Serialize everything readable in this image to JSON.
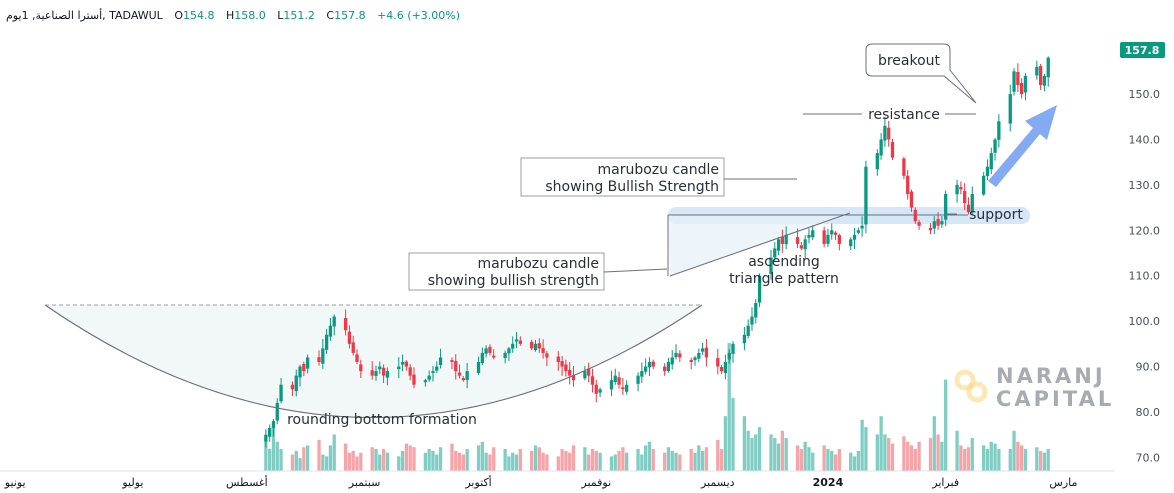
{
  "header": {
    "symbol": "أسترا الصناعية, 1يوم, TADAWUL",
    "open_label": "O",
    "open": "154.8",
    "high_label": "H",
    "high": "158.0",
    "low_label": "L",
    "low": "151.2",
    "close_label": "C",
    "close": "157.8",
    "change": "+4.6 (+3.00%)"
  },
  "price_badge": "157.8",
  "watermark": {
    "line1": "NARANJ",
    "line2": "CAPITAL"
  },
  "colors": {
    "up": "#089981",
    "down": "#f23645",
    "vol_up": "#7fcdc3",
    "vol_down": "#f7a3a8",
    "badge": "#089981",
    "arrow": "#5b8def",
    "highlight": "#cfe3f7"
  },
  "annotations": {
    "rounding_bottom": "rounding bottom formation",
    "marubozu1_l1": "marubozu candle",
    "marubozu1_l2": "showing bullish strength",
    "marubozu2_l1": "marubozu candle",
    "marubozu2_l2": "showing Bullish Strength",
    "ascending_l1": "ascending",
    "ascending_l2": "triangle pattern",
    "resistance": "resistance",
    "support": "support",
    "breakout": "breakout"
  },
  "chart_data": {
    "type": "candlestick",
    "ylim": [
      67,
      163
    ],
    "y_ticks": [
      "70.0",
      "80.0",
      "90.0",
      "100.0",
      "110.0",
      "120.0",
      "130.0",
      "140.0",
      "150.0",
      "160.0"
    ],
    "y_tick_values": [
      70,
      80,
      90,
      100,
      110,
      120,
      130,
      140,
      150,
      160
    ],
    "x_labels": [
      "يونيو",
      "يوليو",
      "أغسطس",
      "سبتمبر",
      "أكتوبر",
      "نوفمبر",
      "ديسمبر",
      "2024",
      "فبراير",
      "مارس"
    ],
    "x_label_dates": [
      "2023-06-01",
      "2023-07-02",
      "2023-08-01",
      "2023-09-01",
      "2023-10-01",
      "2023-11-01",
      "2023-12-03",
      "2024-01-01",
      "2024-02-01",
      "2024-03-03"
    ],
    "date_range": [
      "2023-05-28",
      "2024-03-10"
    ],
    "last_bar_date": "2024-02-28",
    "levels": {
      "rounding_bottom_top": 101,
      "support": 121,
      "resistance": 144
    },
    "closes": [
      75,
      76.5,
      78,
      82,
      86,
      85,
      88,
      90,
      89,
      92,
      91,
      94,
      97,
      99,
      101,
      98,
      95,
      93,
      91,
      89,
      88,
      89,
      90,
      88,
      89,
      90,
      91,
      90,
      88,
      86,
      87,
      88,
      89,
      90,
      92,
      91,
      89,
      88,
      87,
      89,
      91,
      93,
      94,
      93,
      92,
      93,
      94,
      95,
      96,
      95,
      94,
      95,
      94,
      93,
      92,
      91,
      90,
      89,
      88,
      87,
      89,
      88,
      86,
      84,
      85,
      87,
      88,
      86,
      85,
      86,
      88,
      89,
      90,
      91,
      90,
      89,
      91,
      92,
      93,
      92,
      91,
      92,
      93,
      94,
      92,
      90,
      89,
      91,
      93,
      95,
      97,
      99,
      101,
      104,
      110,
      114,
      116,
      118,
      117,
      119,
      117,
      116,
      118,
      119,
      120,
      117,
      119,
      120,
      119,
      117,
      118,
      119,
      120,
      121,
      134,
      137,
      140,
      143,
      140,
      136,
      132,
      128,
      125,
      122,
      121,
      120,
      122,
      121,
      122,
      128,
      130,
      129,
      126,
      124,
      128,
      132,
      134,
      137,
      140,
      144,
      150,
      155,
      152,
      150,
      154,
      156,
      152,
      154,
      158
    ],
    "volumes": [
      18,
      12,
      25,
      16,
      12,
      9,
      11,
      7,
      13,
      14,
      17,
      9,
      8,
      14,
      20,
      15,
      10,
      11,
      8,
      10,
      13,
      12,
      9,
      12,
      10,
      8,
      11,
      15,
      14,
      13,
      10,
      12,
      11,
      9,
      13,
      15,
      11,
      10,
      9,
      12,
      14,
      16,
      10,
      9,
      13,
      12,
      8,
      10,
      9,
      12,
      11,
      14,
      13,
      10,
      9,
      8,
      12,
      11,
      10,
      14,
      13,
      9,
      12,
      11,
      10,
      8,
      9,
      11,
      13,
      10,
      12,
      9,
      14,
      16,
      12,
      10,
      13,
      11,
      10,
      9,
      12,
      10,
      14,
      11,
      13,
      17,
      12,
      30,
      70,
      40,
      30,
      22,
      18,
      20,
      24,
      20,
      18,
      15,
      22,
      18,
      14,
      12,
      16,
      13,
      10,
      14,
      12,
      11,
      9,
      12,
      10,
      8,
      11,
      28,
      24,
      20,
      30,
      20,
      18,
      15,
      19,
      16,
      14,
      12,
      16,
      18,
      30,
      20,
      16,
      50,
      22,
      14,
      12,
      13,
      18,
      14,
      12,
      16,
      15,
      12,
      12,
      22,
      16,
      14,
      12,
      13,
      11,
      10,
      12
    ]
  }
}
